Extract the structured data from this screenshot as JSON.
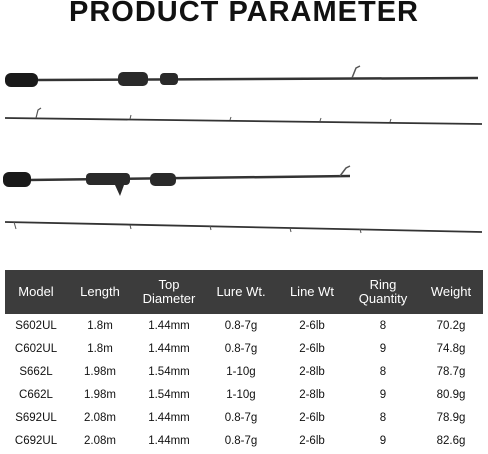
{
  "header": {
    "title": "PRODUCT PARAMETER"
  },
  "table": {
    "columns": [
      "Model",
      "Length",
      "Top Diameter",
      "Lure Wt.",
      "Line Wt",
      "Ring Quantity",
      "Weight"
    ],
    "rows": [
      [
        "S602UL",
        "1.8m",
        "1.44mm",
        "0.8-7g",
        "2-6lb",
        "8",
        "70.2g"
      ],
      [
        "C602UL",
        "1.8m",
        "1.44mm",
        "0.8-7g",
        "2-6lb",
        "9",
        "74.8g"
      ],
      [
        "S662L",
        "1.98m",
        "1.54mm",
        "1-10g",
        "2-8lb",
        "8",
        "78.7g"
      ],
      [
        "C662L",
        "1.98m",
        "1.54mm",
        "1-10g",
        "2-8lb",
        "9",
        "80.9g"
      ],
      [
        "S692UL",
        "2.08m",
        "1.44mm",
        "0.8-7g",
        "2-6lb",
        "8",
        "78.9g"
      ],
      [
        "C692UL",
        "2.08m",
        "1.44mm",
        "0.8-7g",
        "2-6lb",
        "9",
        "82.6g"
      ]
    ]
  }
}
